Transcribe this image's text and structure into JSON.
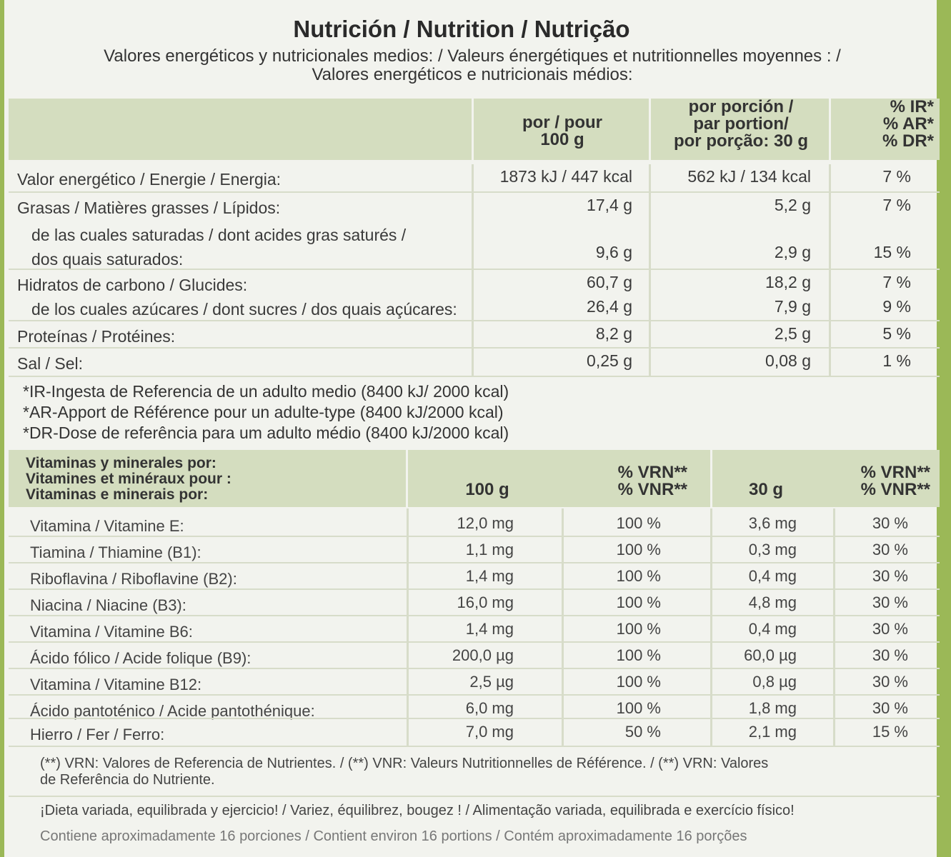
{
  "title": "Nutrición / Nutrition / Nutrição",
  "subtitle_line1": "Valores energéticos y nutricionales medios: / Valeurs énergétiques et nutritionnelles moyennes : /",
  "subtitle_line2": "Valores energéticos e nutricionais médios:",
  "header": {
    "per100_l1": "por / pour",
    "per100_l2": "100 g",
    "portion_l1": "por porción /",
    "portion_l2": "par portion/",
    "portion_l3": "por porção: 30 g",
    "ref_l1": "% IR*",
    "ref_l2": "% AR*",
    "ref_l3": "% DR*"
  },
  "nutrition": [
    {
      "label": "Valor energético / Energie / Energia:",
      "per100": "1873 kJ / 447 kcal",
      "portion": "562 kJ / 134 kcal",
      "ref": "7 %"
    },
    {
      "label": "Grasas / Matières grasses / Lípidos:",
      "per100": "17,4 g",
      "portion": "5,2 g",
      "ref": "7 %"
    },
    {
      "label": "de las cuales saturadas / dont acides gras saturés /",
      "label2": "dos quais saturados:",
      "per100": "9,6 g",
      "portion": "2,9 g",
      "ref": "15 %"
    },
    {
      "label": "Hidratos de carbono / Glucides:",
      "per100": "60,7 g",
      "portion": "18,2 g",
      "ref": "7 %"
    },
    {
      "label": "de los cuales azúcares / dont sucres / dos quais açúcares:",
      "per100": "26,4 g",
      "portion": "7,9 g",
      "ref": "9 %"
    },
    {
      "label": "Proteínas / Protéines:",
      "per100": "8,2 g",
      "portion": "2,5 g",
      "ref": "5 %"
    },
    {
      "label": "Sal / Sel:",
      "per100": "0,25 g",
      "portion": "0,08 g",
      "ref": "1 %"
    }
  ],
  "notes": [
    "*IR-Ingesta de Referencia de un adulto medio (8400 kJ/ 2000 kcal)",
    "*AR-Apport de Référence pour un adulte-type (8400 kJ/2000 kcal)",
    "*DR-Dose de referência para um adulto médio (8400 kJ/2000 kcal)"
  ],
  "vitamins_header": {
    "label_l1": "Vitaminas y minerales por:",
    "label_l2": "Vitamines et minéraux pour :",
    "label_l3": "Vitaminas e minerais por:",
    "col_100g": "100 g",
    "vrn_l1": "% VRN**",
    "vrn_l2": "% VNR**",
    "col_30g": "30 g",
    "vrn2_l1": "% VRN**",
    "vrn2_l2": "% VNR**"
  },
  "vitamins": [
    {
      "label": "Vitamina / Vitamine E:",
      "per100": "12,0 mg",
      "vrn100": "100 %",
      "per30": "3,6 mg",
      "vrn30": "30 %"
    },
    {
      "label": "Tiamina / Thiamine (B1):",
      "per100": "1,1 mg",
      "vrn100": "100 %",
      "per30": "0,3 mg",
      "vrn30": "30 %"
    },
    {
      "label": "Riboflavina / Riboflavine (B2):",
      "per100": "1,4 mg",
      "vrn100": "100 %",
      "per30": "0,4 mg",
      "vrn30": "30 %"
    },
    {
      "label": "Niacina / Niacine (B3):",
      "per100": "16,0 mg",
      "vrn100": "100 %",
      "per30": "4,8 mg",
      "vrn30": "30 %"
    },
    {
      "label": "Vitamina / Vitamine B6:",
      "per100": "1,4 mg",
      "vrn100": "100 %",
      "per30": "0,4 mg",
      "vrn30": "30 %"
    },
    {
      "label": "Ácido fólico / Acide folique (B9):",
      "per100": "200,0 µg",
      "vrn100": "100 %",
      "per30": "60,0 µg",
      "vrn30": "30 %"
    },
    {
      "label": "Vitamina / Vitamine B12:",
      "per100": "2,5 µg",
      "vrn100": "100 %",
      "per30": "0,8 µg",
      "vrn30": "30 %"
    },
    {
      "label": "Ácido pantoténico / Acide pantothénique:",
      "per100": "6,0 mg",
      "vrn100": "100 %",
      "per30": "1,8 mg",
      "vrn30": "30 %"
    },
    {
      "label": "Hierro / Fer / Ferro:",
      "per100": "7,0 mg",
      "vrn100": "50 %",
      "per30": "2,1 mg",
      "vrn30": "15 %"
    }
  ],
  "footnote_l1": "(**) VRN: Valores de Referencia de Nutrientes. / (**) VNR: Valeurs Nutritionnelles de Référence. / (**) VRN: Valores",
  "footnote_l2": "de Referência do Nutriente.",
  "diet": "¡Dieta variada, equilibrada y ejercicio! / Variez, équilibrez, bougez ! / Alimentação variada, equilibrada e exercício físico!",
  "portions": "Contiene aproximadamente 16 porciones / Contient environ 16 portions / Contém aproximadamente 16 porções"
}
